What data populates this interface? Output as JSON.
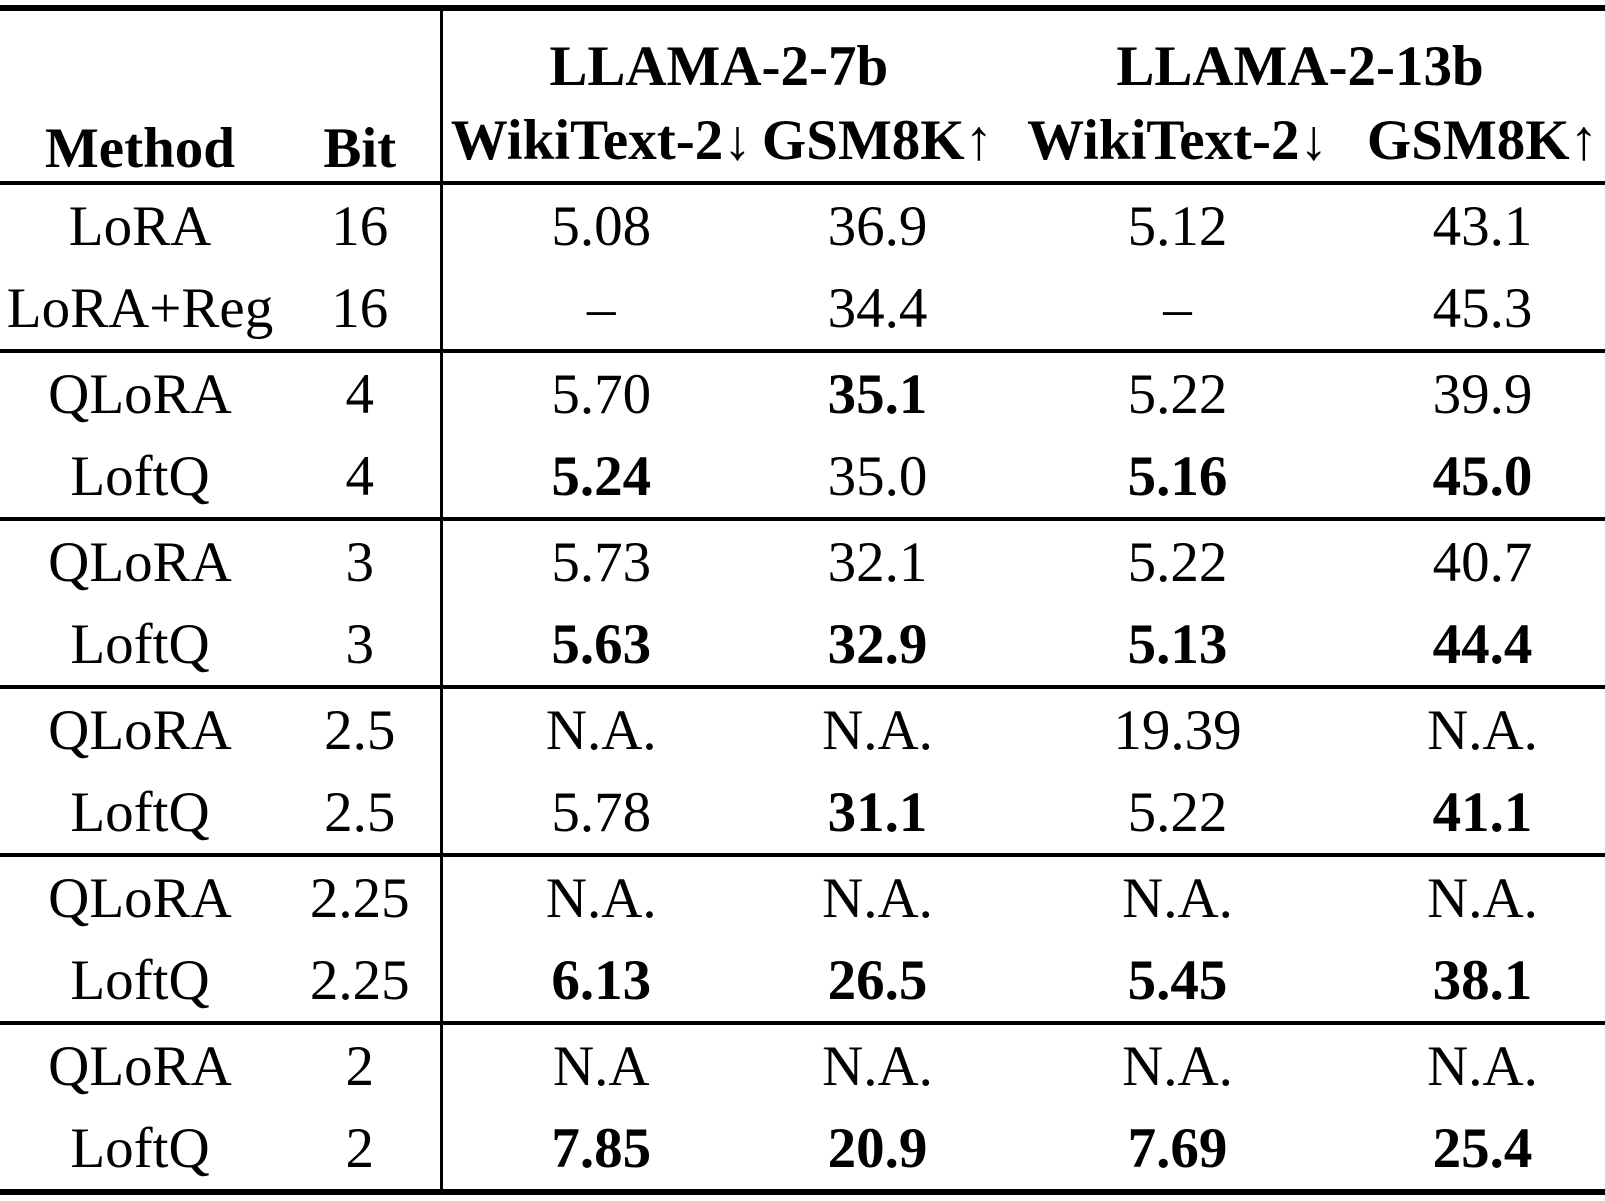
{
  "colors": {
    "text": "#000000",
    "background": "#ffffff",
    "rule": "#000000"
  },
  "table": {
    "headers": {
      "method": "Method",
      "bit": "Bit",
      "group_7b": "LLAMA-2-7b",
      "group_13b": "LLAMA-2-13b",
      "wikitext_7b": "WikiText-2↓",
      "gsm8k_7b": "GSM8K↑",
      "wikitext_13b": "WikiText-2↓",
      "gsm8k_13b": "GSM8K↑"
    },
    "rows": [
      {
        "group": 1,
        "method": "LoRA",
        "bit": "16",
        "w7": {
          "t": "5.08",
          "bold": false
        },
        "g7": {
          "t": "36.9",
          "bold": false
        },
        "w13": {
          "t": "5.12",
          "bold": false
        },
        "g13": {
          "t": "43.1",
          "bold": false
        }
      },
      {
        "group": 1,
        "method": "LoRA+Reg",
        "bit": "16",
        "w7": {
          "t": "–",
          "bold": false
        },
        "g7": {
          "t": "34.4",
          "bold": false
        },
        "w13": {
          "t": "–",
          "bold": false
        },
        "g13": {
          "t": "45.3",
          "bold": false
        }
      },
      {
        "group": 2,
        "method": "QLoRA",
        "bit": "4",
        "w7": {
          "t": "5.70",
          "bold": false
        },
        "g7": {
          "t": "35.1",
          "bold": true
        },
        "w13": {
          "t": "5.22",
          "bold": false
        },
        "g13": {
          "t": "39.9",
          "bold": false
        }
      },
      {
        "group": 2,
        "method": "LoftQ",
        "bit": "4",
        "w7": {
          "t": "5.24",
          "bold": true
        },
        "g7": {
          "t": "35.0",
          "bold": false
        },
        "w13": {
          "t": "5.16",
          "bold": true
        },
        "g13": {
          "t": "45.0",
          "bold": true
        }
      },
      {
        "group": 3,
        "method": "QLoRA",
        "bit": "3",
        "w7": {
          "t": "5.73",
          "bold": false
        },
        "g7": {
          "t": "32.1",
          "bold": false
        },
        "w13": {
          "t": "5.22",
          "bold": false
        },
        "g13": {
          "t": "40.7",
          "bold": false
        }
      },
      {
        "group": 3,
        "method": "LoftQ",
        "bit": "3",
        "w7": {
          "t": "5.63",
          "bold": true
        },
        "g7": {
          "t": "32.9",
          "bold": true
        },
        "w13": {
          "t": "5.13",
          "bold": true
        },
        "g13": {
          "t": "44.4",
          "bold": true
        }
      },
      {
        "group": 4,
        "method": "QLoRA",
        "bit": "2.5",
        "w7": {
          "t": "N.A.",
          "bold": false
        },
        "g7": {
          "t": "N.A.",
          "bold": false
        },
        "w13": {
          "t": "19.39",
          "bold": false
        },
        "g13": {
          "t": "N.A.",
          "bold": false
        }
      },
      {
        "group": 4,
        "method": "LoftQ",
        "bit": "2.5",
        "w7": {
          "t": "5.78",
          "bold": false
        },
        "g7": {
          "t": "31.1",
          "bold": true
        },
        "w13": {
          "t": "5.22",
          "bold": false
        },
        "g13": {
          "t": "41.1",
          "bold": true
        }
      },
      {
        "group": 5,
        "method": "QLoRA",
        "bit": "2.25",
        "w7": {
          "t": "N.A.",
          "bold": false
        },
        "g7": {
          "t": "N.A.",
          "bold": false
        },
        "w13": {
          "t": "N.A.",
          "bold": false
        },
        "g13": {
          "t": "N.A.",
          "bold": false
        }
      },
      {
        "group": 5,
        "method": "LoftQ",
        "bit": "2.25",
        "w7": {
          "t": "6.13",
          "bold": true
        },
        "g7": {
          "t": "26.5",
          "bold": true
        },
        "w13": {
          "t": "5.45",
          "bold": true
        },
        "g13": {
          "t": "38.1",
          "bold": true
        }
      },
      {
        "group": 6,
        "method": "QLoRA",
        "bit": "2",
        "w7": {
          "t": "N.A",
          "bold": false
        },
        "g7": {
          "t": "N.A.",
          "bold": false
        },
        "w13": {
          "t": "N.A.",
          "bold": false
        },
        "g13": {
          "t": "N.A.",
          "bold": false
        }
      },
      {
        "group": 6,
        "method": "LoftQ",
        "bit": "2",
        "w7": {
          "t": "7.85",
          "bold": true
        },
        "g7": {
          "t": "20.9",
          "bold": true
        },
        "w13": {
          "t": "7.69",
          "bold": true
        },
        "g13": {
          "t": "25.4",
          "bold": true
        }
      }
    ]
  }
}
